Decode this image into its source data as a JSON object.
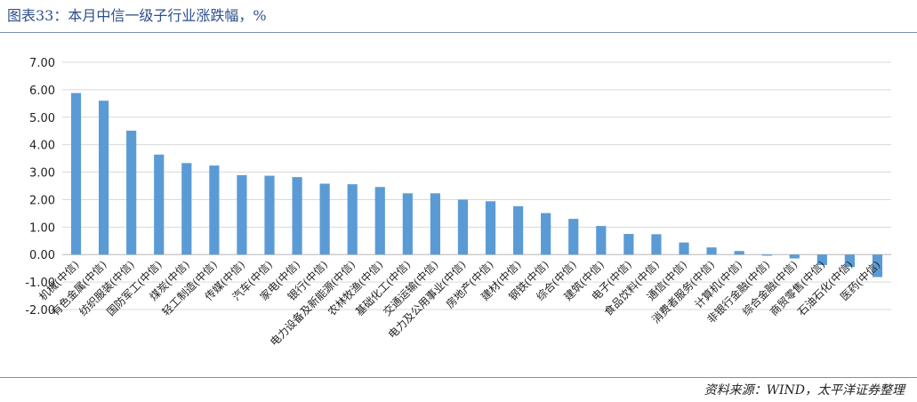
{
  "header": {
    "title": "图表33：本月中信一级子行业涨跌幅，%"
  },
  "footer": {
    "source": "资料来源：WIND，太平洋证券整理"
  },
  "colors": {
    "bar": "#5b9bd5",
    "grid": "#d9d9d9",
    "title": "#2e4f8c"
  },
  "chart_data": {
    "type": "bar",
    "title": "",
    "xlabel": "",
    "ylabel": "",
    "ylim": [
      -2,
      7
    ],
    "yticks": [
      "-2.00",
      "-1.00",
      "0.00",
      "1.00",
      "2.00",
      "3.00",
      "4.00",
      "5.00",
      "6.00",
      "7.00"
    ],
    "grid": true,
    "categories": [
      "机械(中信)",
      "有色金属(中信)",
      "纺织服装(中信)",
      "国防军工(中信)",
      "煤炭(中信)",
      "轻工制造(中信)",
      "传媒(中信)",
      "汽车(中信)",
      "家电(中信)",
      "银行(中信)",
      "电力设备及新能源(中信)",
      "农林牧渔(中信)",
      "基础化工(中信)",
      "交通运输(中信)",
      "电力及公用事业(中信)",
      "房地产(中信)",
      "建材(中信)",
      "钢铁(中信)",
      "综合(中信)",
      "建筑(中信)",
      "电子(中信)",
      "食品饮料(中信)",
      "通信(中信)",
      "消费者服务(中信)",
      "计算机(中信)",
      "非银行金融(中信)",
      "综合金融(中信)",
      "商贸零售(中信)",
      "石油石化(中信)",
      "医药(中信)"
    ],
    "values": [
      5.88,
      5.6,
      4.51,
      3.64,
      3.33,
      3.24,
      2.89,
      2.87,
      2.82,
      2.58,
      2.56,
      2.46,
      2.23,
      2.23,
      2.0,
      1.94,
      1.76,
      1.51,
      1.3,
      1.04,
      0.75,
      0.74,
      0.44,
      0.26,
      0.13,
      -0.04,
      -0.14,
      -0.38,
      -0.45,
      -0.82
    ]
  }
}
